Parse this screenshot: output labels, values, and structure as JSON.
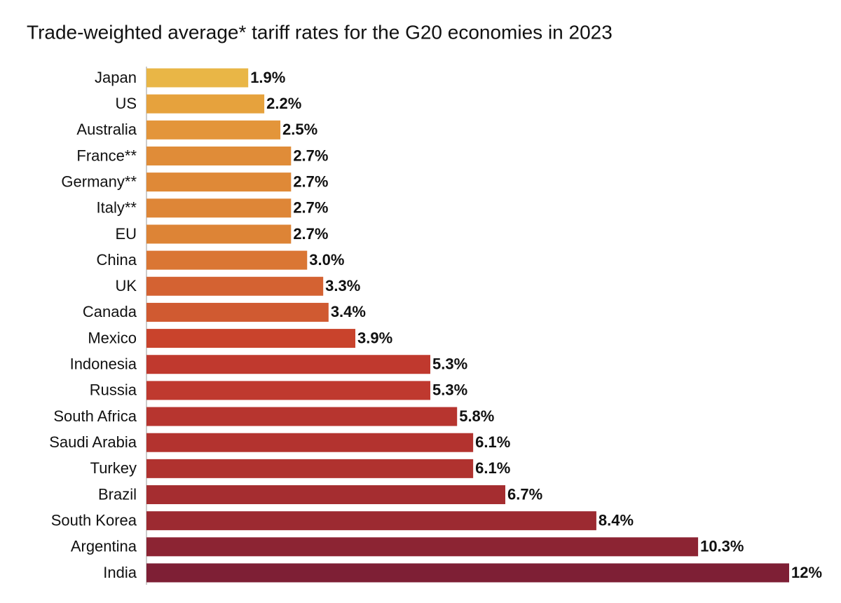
{
  "chart_data": {
    "type": "hbar",
    "title": "Trade-weighted average* tariff rates for the G20 economies in 2023",
    "categories": [
      "Japan",
      "US",
      "Australia",
      "France**",
      "Germany**",
      "Italy**",
      "EU",
      "China",
      "UK",
      "Canada",
      "Mexico",
      "Indonesia",
      "Russia",
      "South Africa",
      "Saudi Arabia",
      "Turkey",
      "Brazil",
      "South Korea",
      "Argentina",
      "India"
    ],
    "values": [
      1.9,
      2.2,
      2.5,
      2.7,
      2.7,
      2.7,
      2.7,
      3.0,
      3.3,
      3.4,
      3.9,
      5.3,
      5.3,
      5.8,
      6.1,
      6.1,
      6.7,
      8.4,
      10.3,
      12
    ],
    "value_labels": [
      "1.9%",
      "2.2%",
      "2.5%",
      "2.7%",
      "2.7%",
      "2.7%",
      "2.7%",
      "3.0%",
      "3.3%",
      "3.4%",
      "3.9%",
      "5.3%",
      "5.3%",
      "5.8%",
      "6.1%",
      "6.1%",
      "6.7%",
      "8.4%",
      "10.3%",
      "12%"
    ],
    "colors": [
      "#e9b646",
      "#e6a23d",
      "#e3953a",
      "#e08c38",
      "#df8937",
      "#de8637",
      "#dd8436",
      "#da7634",
      "#d46232",
      "#d05a31",
      "#c9432c",
      "#c0392e",
      "#bf392f",
      "#b7352f",
      "#b3332f",
      "#b0322f",
      "#a52d30",
      "#9c2a31",
      "#8c2433",
      "#7e1f35"
    ]
  }
}
